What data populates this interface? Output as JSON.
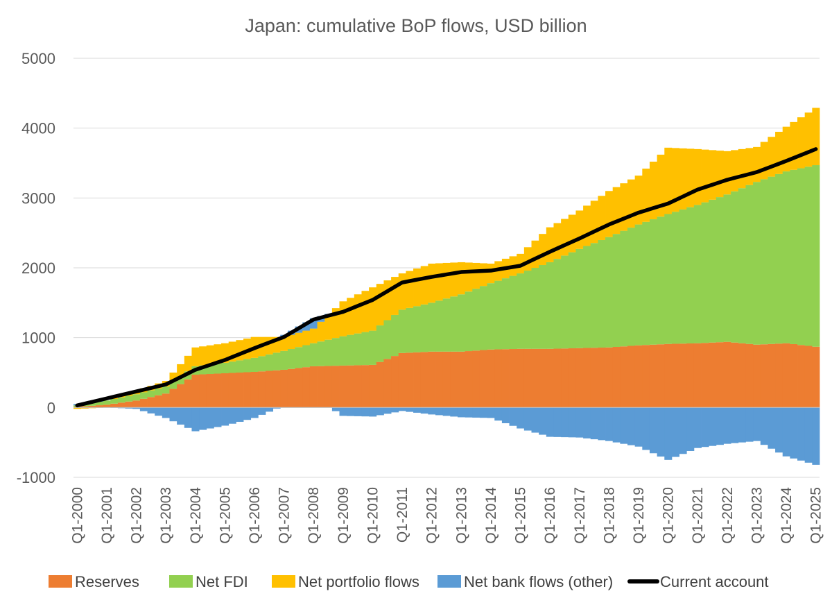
{
  "chart_data": {
    "type": "area",
    "title": "Japan: cumulative BoP flows, USD billion",
    "xlabel": "",
    "ylabel": "",
    "ylim": [
      -1000,
      5000
    ],
    "yticks": [
      5000,
      4000,
      3000,
      2000,
      1000,
      0,
      -1000
    ],
    "grid": true,
    "legend_position": "bottom",
    "x_tick_labels": [
      "Q1-2000",
      "Q1-2001",
      "Q1-2002",
      "Q1-2003",
      "Q1-2004",
      "Q1-2005",
      "Q1-2006",
      "Q1-2007",
      "Q1-2008",
      "Q1-2009",
      "Q1-2010",
      "Q1-2011",
      "Q1-2012",
      "Q1-2013",
      "Q1-2014",
      "Q1-2015",
      "Q1-2016",
      "Q1-2017",
      "Q1-2018",
      "Q1-2019",
      "Q1-2020",
      "Q1-2021",
      "Q1-2022",
      "Q1-2023",
      "Q1-2024",
      "Q1-2025"
    ],
    "annual_data": [
      {
        "year": 2000,
        "reserves": 10,
        "net_fdi": 20,
        "net_portfolio": -20,
        "net_bank": 20,
        "current_account": 30
      },
      {
        "year": 2001,
        "reserves": 40,
        "net_fdi": 60,
        "net_portfolio": 0,
        "net_bank": 0,
        "current_account": 130
      },
      {
        "year": 2002,
        "reserves": 100,
        "net_fdi": 90,
        "net_portfolio": 50,
        "net_bank": -20,
        "current_account": 230
      },
      {
        "year": 2003,
        "reserves": 200,
        "net_fdi": 100,
        "net_portfolio": 80,
        "net_bank": -150,
        "current_account": 330
      },
      {
        "year": 2004,
        "reserves": 470,
        "net_fdi": 120,
        "net_portfolio": 270,
        "net_bank": -340,
        "current_account": 540
      },
      {
        "year": 2005,
        "reserves": 490,
        "net_fdi": 150,
        "net_portfolio": 280,
        "net_bank": -260,
        "current_account": 680
      },
      {
        "year": 2006,
        "reserves": 510,
        "net_fdi": 200,
        "net_portfolio": 300,
        "net_bank": -150,
        "current_account": 850
      },
      {
        "year": 2007,
        "reserves": 540,
        "net_fdi": 270,
        "net_portfolio": 200,
        "net_bank": 30,
        "current_account": 1010
      },
      {
        "year": 2008,
        "reserves": 590,
        "net_fdi": 330,
        "net_portfolio": 210,
        "net_bank": 150,
        "current_account": 1260
      },
      {
        "year": 2009,
        "reserves": 600,
        "net_fdi": 420,
        "net_portfolio": 500,
        "net_bank": -120,
        "current_account": 1370
      },
      {
        "year": 2010,
        "reserves": 610,
        "net_fdi": 490,
        "net_portfolio": 620,
        "net_bank": -130,
        "current_account": 1540
      },
      {
        "year": 2011,
        "reserves": 780,
        "net_fdi": 620,
        "net_portfolio": 520,
        "net_bank": -50,
        "current_account": 1790
      },
      {
        "year": 2012,
        "reserves": 800,
        "net_fdi": 700,
        "net_portfolio": 560,
        "net_bank": -100,
        "current_account": 1870
      },
      {
        "year": 2013,
        "reserves": 800,
        "net_fdi": 820,
        "net_portfolio": 460,
        "net_bank": -140,
        "current_account": 1940
      },
      {
        "year": 2014,
        "reserves": 830,
        "net_fdi": 950,
        "net_portfolio": 280,
        "net_bank": -150,
        "current_account": 1960
      },
      {
        "year": 2015,
        "reserves": 840,
        "net_fdi": 1080,
        "net_portfolio": 280,
        "net_bank": -300,
        "current_account": 2030
      },
      {
        "year": 2016,
        "reserves": 840,
        "net_fdi": 1240,
        "net_portfolio": 500,
        "net_bank": -420,
        "current_account": 2230
      },
      {
        "year": 2017,
        "reserves": 850,
        "net_fdi": 1420,
        "net_portfolio": 550,
        "net_bank": -430,
        "current_account": 2420
      },
      {
        "year": 2018,
        "reserves": 860,
        "net_fdi": 1580,
        "net_portfolio": 660,
        "net_bank": -480,
        "current_account": 2620
      },
      {
        "year": 2019,
        "reserves": 890,
        "net_fdi": 1730,
        "net_portfolio": 700,
        "net_bank": -560,
        "current_account": 2790
      },
      {
        "year": 2020,
        "reserves": 910,
        "net_fdi": 1860,
        "net_portfolio": 950,
        "net_bank": -750,
        "current_account": 2920
      },
      {
        "year": 2021,
        "reserves": 920,
        "net_fdi": 1980,
        "net_portfolio": 800,
        "net_bank": -580,
        "current_account": 3120
      },
      {
        "year": 2022,
        "reserves": 940,
        "net_fdi": 2110,
        "net_portfolio": 620,
        "net_bank": -520,
        "current_account": 3260
      },
      {
        "year": 2023,
        "reserves": 900,
        "net_fdi": 2330,
        "net_portfolio": 500,
        "net_bank": -480,
        "current_account": 3370
      },
      {
        "year": 2024,
        "reserves": 920,
        "net_fdi": 2460,
        "net_portfolio": 640,
        "net_bank": -700,
        "current_account": 3530
      },
      {
        "year": 2025,
        "reserves": 870,
        "net_fdi": 2600,
        "net_portfolio": 820,
        "net_bank": -820,
        "current_account": 3700
      }
    ],
    "series": [
      {
        "name": "Reserves",
        "key": "reserves",
        "color": "#ed7d31",
        "kind": "stacked-bar"
      },
      {
        "name": "Net FDI",
        "key": "net_fdi",
        "color": "#92d050",
        "kind": "stacked-bar"
      },
      {
        "name": "Net portfolio flows",
        "key": "net_portfolio",
        "color": "#ffc000",
        "kind": "stacked-bar"
      },
      {
        "name": "Net bank flows (other)",
        "key": "net_bank",
        "color": "#5b9bd5",
        "kind": "stacked-bar"
      },
      {
        "name": "Current account",
        "key": "current_account",
        "color": "#000000",
        "kind": "line"
      }
    ]
  }
}
